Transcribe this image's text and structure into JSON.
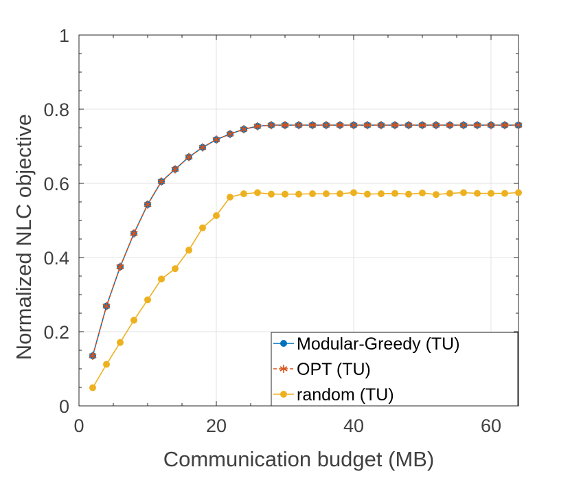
{
  "chart_data": {
    "type": "line",
    "title": "",
    "xlabel": "Communication budget (MB)",
    "ylabel": "Normalized NLC objective",
    "xlim": [
      0,
      64
    ],
    "ylim": [
      0,
      1
    ],
    "xticks": [
      0,
      20,
      40,
      60
    ],
    "yticks": [
      0,
      0.2,
      0.4,
      0.6,
      0.8,
      1
    ],
    "xtick_labels": [
      "0",
      "20",
      "40",
      "60"
    ],
    "ytick_labels": [
      "0",
      "0.2",
      "0.4",
      "0.6",
      "0.8",
      "1"
    ],
    "grid": true,
    "legend_position": "bottom-right",
    "x": [
      2,
      4,
      6,
      8,
      10,
      12,
      14,
      16,
      18,
      20,
      22,
      24,
      26,
      28,
      30,
      32,
      34,
      36,
      38,
      40,
      42,
      44,
      46,
      48,
      50,
      52,
      54,
      56,
      58,
      60,
      62,
      64
    ],
    "series": [
      {
        "name": "Modular-Greedy (TU)",
        "color": "#0072BD",
        "marker": "dot",
        "line_style": "solid",
        "values": [
          0.135,
          0.269,
          0.375,
          0.465,
          0.543,
          0.605,
          0.638,
          0.671,
          0.697,
          0.718,
          0.733,
          0.746,
          0.754,
          0.757,
          0.757,
          0.757,
          0.757,
          0.757,
          0.757,
          0.757,
          0.757,
          0.757,
          0.757,
          0.757,
          0.757,
          0.757,
          0.757,
          0.757,
          0.757,
          0.757,
          0.757,
          0.757
        ]
      },
      {
        "name": "OPT (TU)",
        "color": "#D95319",
        "marker": "asterisk",
        "line_style": "dashed",
        "values": [
          0.135,
          0.269,
          0.375,
          0.465,
          0.543,
          0.605,
          0.638,
          0.671,
          0.697,
          0.718,
          0.733,
          0.746,
          0.754,
          0.757,
          0.757,
          0.757,
          0.757,
          0.757,
          0.757,
          0.757,
          0.757,
          0.757,
          0.757,
          0.757,
          0.757,
          0.757,
          0.757,
          0.757,
          0.757,
          0.757,
          0.757,
          0.757
        ]
      },
      {
        "name": "random (TU)",
        "color": "#EDB120",
        "marker": "dot",
        "line_style": "solid",
        "values": [
          0.049,
          0.112,
          0.171,
          0.231,
          0.286,
          0.342,
          0.37,
          0.42,
          0.48,
          0.513,
          0.563,
          0.572,
          0.575,
          0.571,
          0.571,
          0.571,
          0.572,
          0.572,
          0.572,
          0.575,
          0.571,
          0.572,
          0.573,
          0.571,
          0.574,
          0.57,
          0.573,
          0.575,
          0.573,
          0.573,
          0.573,
          0.575
        ]
      }
    ]
  }
}
